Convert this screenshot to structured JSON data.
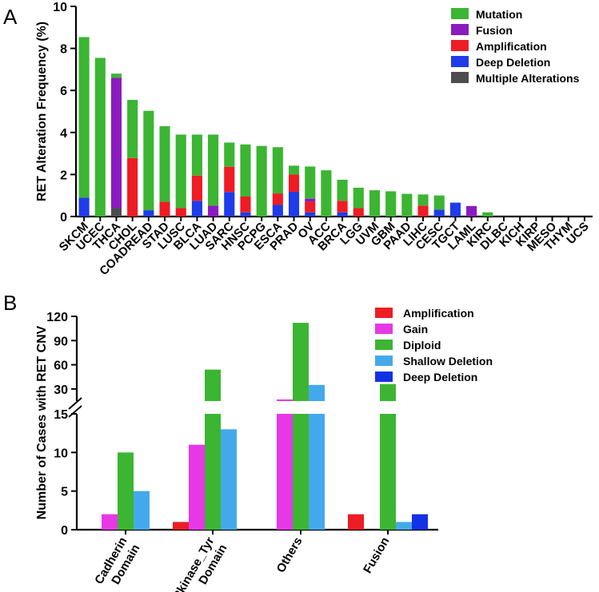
{
  "panels": {
    "a": "A",
    "b": "B"
  },
  "colors": {
    "Mutation": "#3cb533",
    "Fusion": "#8a1bbf",
    "Amplification": "#ee1c24",
    "Deep Deletion": "#1e3ce8",
    "Multiple Alterations": "#4d4d4d",
    "Gain": "#e638e6",
    "Diploid": "#3cb533",
    "Shallow Deletion": "#44a9ea",
    "Deep Deletion B": "#1431e6"
  },
  "chart_data": [
    {
      "type": "bar",
      "stacked": true,
      "title": "",
      "ylabel": "RET Alteration Frequency (%)",
      "xlabel": "",
      "ylim": [
        0,
        10
      ],
      "yticks": [
        "0",
        "2",
        "4",
        "6",
        "8",
        "10"
      ],
      "legend": [
        "Mutation",
        "Fusion",
        "Amplification",
        "Deep Deletion",
        "Multiple Alterations"
      ],
      "categories": [
        "SKCM",
        "UCEC",
        "THCA",
        "CHOL",
        "COADREAD",
        "STAD",
        "LUSC",
        "BLCA",
        "LUAD",
        "SARC",
        "HNSC",
        "PCPG",
        "ESCA",
        "PRAD",
        "OV",
        "ACC",
        "BRCA",
        "LGG",
        "UVM",
        "GBM",
        "PAAD",
        "LIHC",
        "CESC",
        "TGCT",
        "LAML",
        "KIRC",
        "DLBC",
        "KICH",
        "KIRP",
        "MESO",
        "THYM",
        "UCS"
      ],
      "series": [
        {
          "name": "Multiple Alterations",
          "values": [
            0,
            0,
            0.4,
            0,
            0,
            0,
            0,
            0,
            0,
            0,
            0,
            0,
            0,
            0,
            0,
            0,
            0,
            0,
            0,
            0,
            0,
            0,
            0,
            0,
            0,
            0,
            0,
            0,
            0,
            0,
            0,
            0
          ]
        },
        {
          "name": "Deep Deletion",
          "values": [
            0.9,
            0,
            0,
            0,
            0.3,
            0,
            0,
            0.75,
            0,
            1.17,
            0.2,
            0,
            0.55,
            1.18,
            0.2,
            0,
            0.2,
            0,
            0,
            0,
            0,
            0,
            0.33,
            0.66,
            0,
            0,
            0,
            0,
            0,
            0,
            0,
            0
          ]
        },
        {
          "name": "Amplification",
          "values": [
            0,
            0,
            0,
            2.78,
            0,
            0.7,
            0.4,
            1.2,
            0,
            1.2,
            0.75,
            0,
            0.55,
            0.82,
            0.5,
            0,
            0.55,
            0.4,
            0,
            0,
            0,
            0.52,
            0,
            0,
            0,
            0,
            0,
            0,
            0,
            0,
            0,
            0
          ]
        },
        {
          "name": "Fusion",
          "values": [
            0,
            0,
            6.2,
            0,
            0,
            0,
            0,
            0,
            0.52,
            0,
            0,
            0,
            0,
            0,
            0.15,
            0,
            0,
            0,
            0,
            0,
            0,
            0,
            0,
            0,
            0.5,
            0,
            0,
            0,
            0,
            0,
            0,
            0
          ]
        },
        {
          "name": "Mutation",
          "values": [
            7.64,
            7.55,
            0.2,
            2.77,
            4.73,
            3.6,
            3.5,
            1.95,
            3.38,
            1.15,
            2.48,
            3.36,
            2.2,
            0.42,
            1.53,
            2.2,
            1.0,
            0.97,
            1.25,
            1.2,
            1.08,
            0.53,
            0.67,
            0,
            0,
            0.2,
            0,
            0,
            0,
            0,
            0,
            0
          ]
        }
      ]
    },
    {
      "type": "bar",
      "grouped": true,
      "broken_axis": true,
      "title": "",
      "ylabel": "Number of Cases with RET CNV",
      "xlabel": "",
      "ylim_lower": [
        0,
        15
      ],
      "ylim_upper": [
        15,
        120
      ],
      "yticks_lower": [
        "0",
        "5",
        "10",
        "15"
      ],
      "yticks_upper": [
        "30",
        "60",
        "90",
        "120"
      ],
      "legend": [
        "Amplification",
        "Gain",
        "Diploid",
        "Shallow Deletion",
        "Deep Deletion"
      ],
      "categories": [
        {
          "line1": "Cadherin",
          "line2": "Domain"
        },
        {
          "line1": "Pkinase_Tyr",
          "line2": "Domain"
        },
        {
          "line1": "Others",
          "line2": ""
        },
        {
          "line1": "Fusion",
          "line2": ""
        }
      ],
      "series": [
        {
          "name": "Amplification",
          "values": [
            0,
            1,
            0,
            2
          ]
        },
        {
          "name": "Gain",
          "values": [
            2,
            11,
            17,
            0
          ]
        },
        {
          "name": "Diploid",
          "values": [
            10,
            54,
            112,
            36
          ]
        },
        {
          "name": "Shallow Deletion",
          "values": [
            5,
            13,
            35,
            1
          ]
        },
        {
          "name": "Deep Deletion",
          "values": [
            0,
            0,
            0,
            2
          ]
        }
      ]
    }
  ]
}
